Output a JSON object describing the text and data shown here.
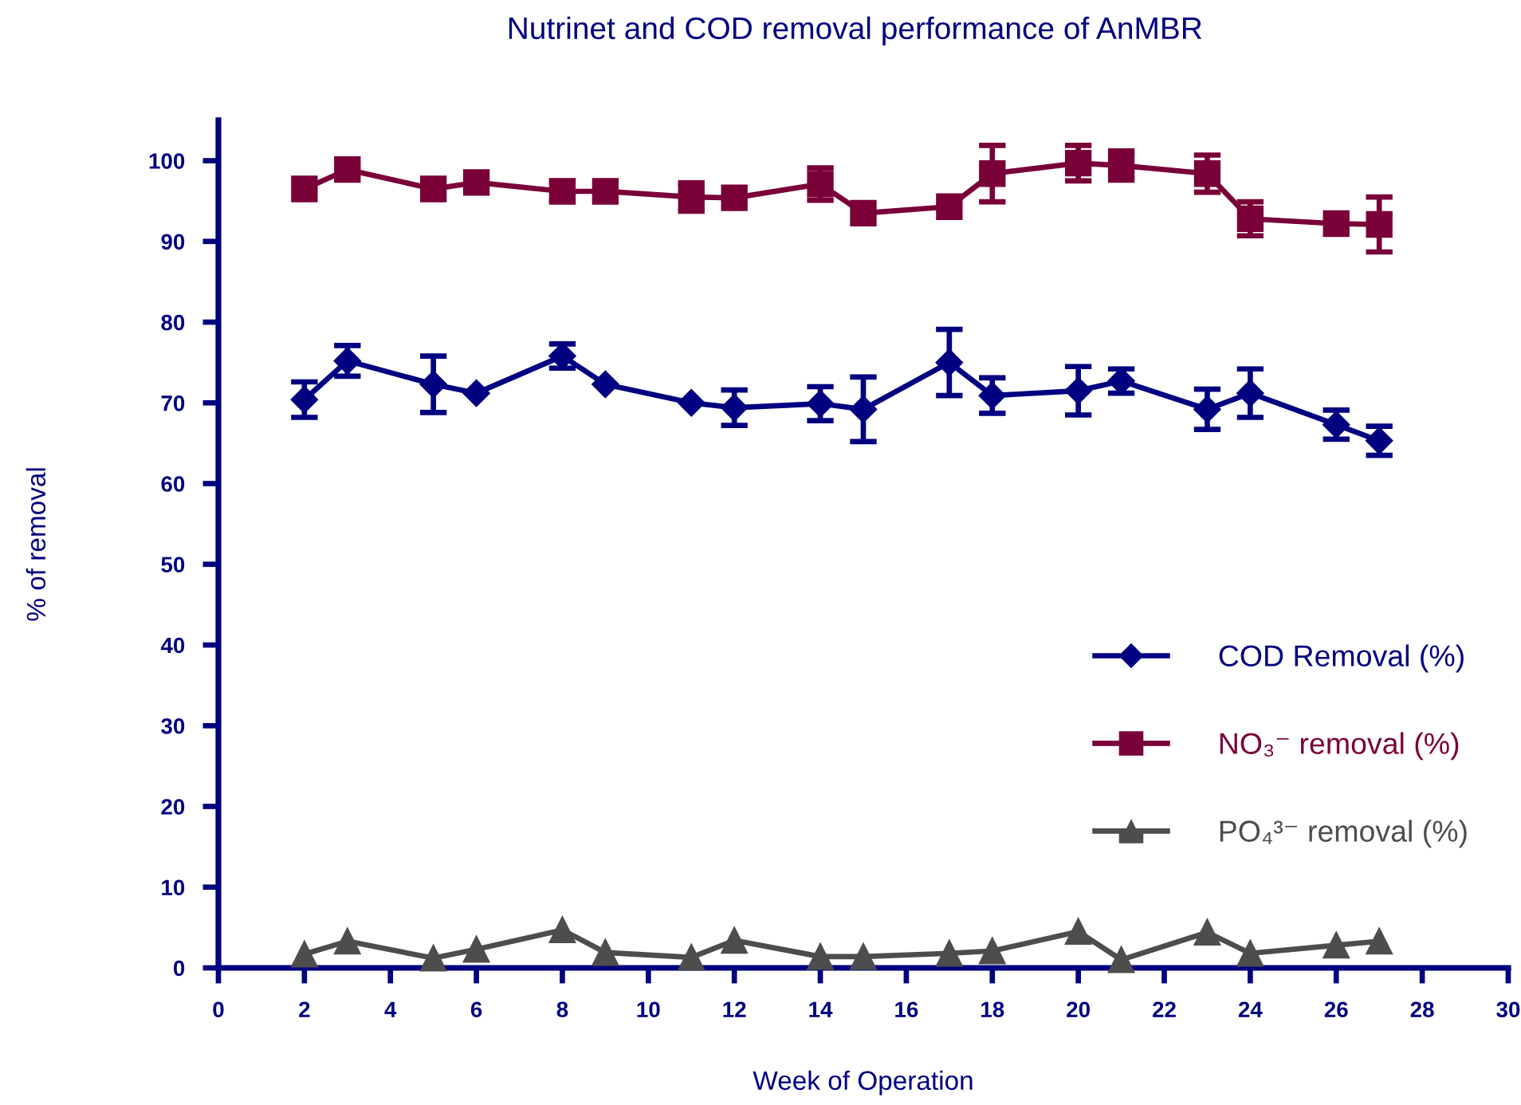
{
  "chart_data": {
    "type": "line",
    "title": "Nutrinet and COD removal performance of AnMBR",
    "xlabel": "Week of Operation",
    "ylabel": "% of removal",
    "x": [
      2,
      3,
      5,
      6,
      8,
      9,
      11,
      12,
      14,
      15,
      17,
      18,
      20,
      21,
      23,
      24,
      26,
      27
    ],
    "xlim": [
      0,
      30
    ],
    "xticks": [
      0,
      2,
      4,
      6,
      8,
      10,
      12,
      14,
      16,
      18,
      20,
      22,
      24,
      26,
      28,
      30
    ],
    "ylim": [
      0,
      105
    ],
    "yticks": [
      0,
      10,
      20,
      30,
      40,
      50,
      60,
      70,
      80,
      90,
      100
    ],
    "grid": false,
    "legend": "lower right",
    "line_style": "solid",
    "series": [
      {
        "name": "COD Removal (%)",
        "color": "#000080",
        "marker": "diamond",
        "values": [
          70.4,
          75.2,
          72.3,
          71.2,
          75.8,
          72.3,
          70.0,
          69.4,
          69.9,
          69.2,
          75.0,
          70.9,
          71.5,
          72.7,
          69.2,
          71.2,
          67.3,
          65.3
        ],
        "errors": [
          2.2,
          1.9,
          3.5,
          null,
          1.5,
          null,
          null,
          2.2,
          2.1,
          4.0,
          4.1,
          2.2,
          3.0,
          1.5,
          2.5,
          3.0,
          1.8,
          1.8
        ]
      },
      {
        "name": "NO₃⁻ removal (%)",
        "color": "#7a0038",
        "marker": "square",
        "values": [
          96.5,
          98.9,
          96.5,
          97.3,
          96.2,
          96.2,
          95.5,
          95.4,
          97.1,
          93.5,
          94.3,
          98.4,
          99.7,
          99.4,
          98.4,
          92.8,
          92.2,
          92.1
        ],
        "errors": [
          null,
          null,
          null,
          null,
          1.2,
          null,
          1.75,
          null,
          2.0,
          null,
          null,
          3.5,
          2.2,
          1.8,
          2.3,
          2.1,
          null,
          3.4
        ]
      },
      {
        "name": "PO₄³⁻ removal (%)",
        "color": "#4d4d4d",
        "marker": "triangle",
        "values": [
          1.7,
          3.3,
          1.2,
          2.3,
          4.7,
          1.9,
          1.3,
          3.4,
          1.4,
          1.4,
          1.8,
          2.1,
          4.5,
          1.0,
          4.4,
          1.8,
          2.8,
          3.3
        ]
      }
    ]
  }
}
